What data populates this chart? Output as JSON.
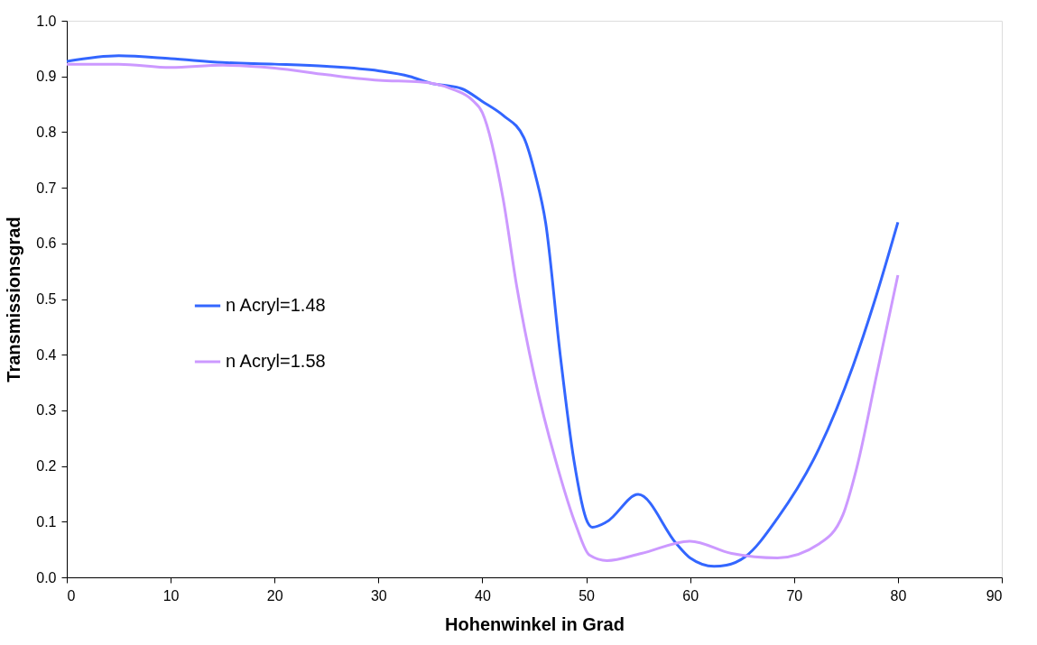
{
  "chart_data": {
    "type": "line",
    "xlabel": "Hohenwinkel in Grad",
    "ylabel": "Transmissionsgrad",
    "xlim": [
      0,
      90
    ],
    "xticks": [
      0,
      10,
      20,
      30,
      40,
      50,
      60,
      70,
      80,
      90
    ],
    "ylim": [
      0,
      1
    ],
    "yticks": [
      {
        "value": 0,
        "label": "0.0"
      },
      0.1,
      0.2,
      0.3,
      0.4,
      0.5,
      0.6,
      0.7,
      0.8,
      0.9,
      {
        "value": 1,
        "label": "1.0"
      }
    ],
    "grid": false,
    "legend": "left",
    "marker": "none",
    "line_style": "solid",
    "series": [
      {
        "name": "n Acryl=1.48",
        "color": "#3366ff",
        "x": [
          0,
          5,
          10,
          15,
          20,
          25,
          30,
          33,
          35,
          38,
          40,
          42,
          44,
          45.1,
          46.1,
          47.5,
          48.8,
          50.1,
          50.6,
          52,
          55,
          58.7,
          60,
          62.3,
          63.5,
          65.3,
          68.4,
          72.4,
          75.7,
          77.7,
          80
        ],
        "values": [
          0.927,
          0.937,
          0.932,
          0.925,
          0.922,
          0.918,
          0.91,
          0.9,
          0.888,
          0.878,
          0.855,
          0.83,
          0.79,
          0.723,
          0.636,
          0.399,
          0.212,
          0.1,
          0.09,
          0.1,
          0.149,
          0.06,
          0.035,
          0.02,
          0.022,
          0.037,
          0.106,
          0.231,
          0.381,
          0.493,
          0.638
        ]
      },
      {
        "name": "n Acryl=1.58",
        "color": "#cc99ff",
        "x": [
          0,
          5,
          10,
          15,
          20,
          25,
          30,
          34,
          37,
          39,
          40,
          42,
          43.3,
          45,
          47.3,
          49,
          50.3,
          52,
          55.3,
          60,
          64,
          68.4,
          72.4,
          74.7,
          76,
          78,
          80
        ],
        "values": [
          0.922,
          0.922,
          0.916,
          0.92,
          0.915,
          0.903,
          0.893,
          0.89,
          0.878,
          0.858,
          0.835,
          0.68,
          0.524,
          0.362,
          0.194,
          0.094,
          0.04,
          0.03,
          0.043,
          0.065,
          0.043,
          0.035,
          0.06,
          0.112,
          0.194,
          0.368,
          0.543
        ]
      }
    ]
  }
}
